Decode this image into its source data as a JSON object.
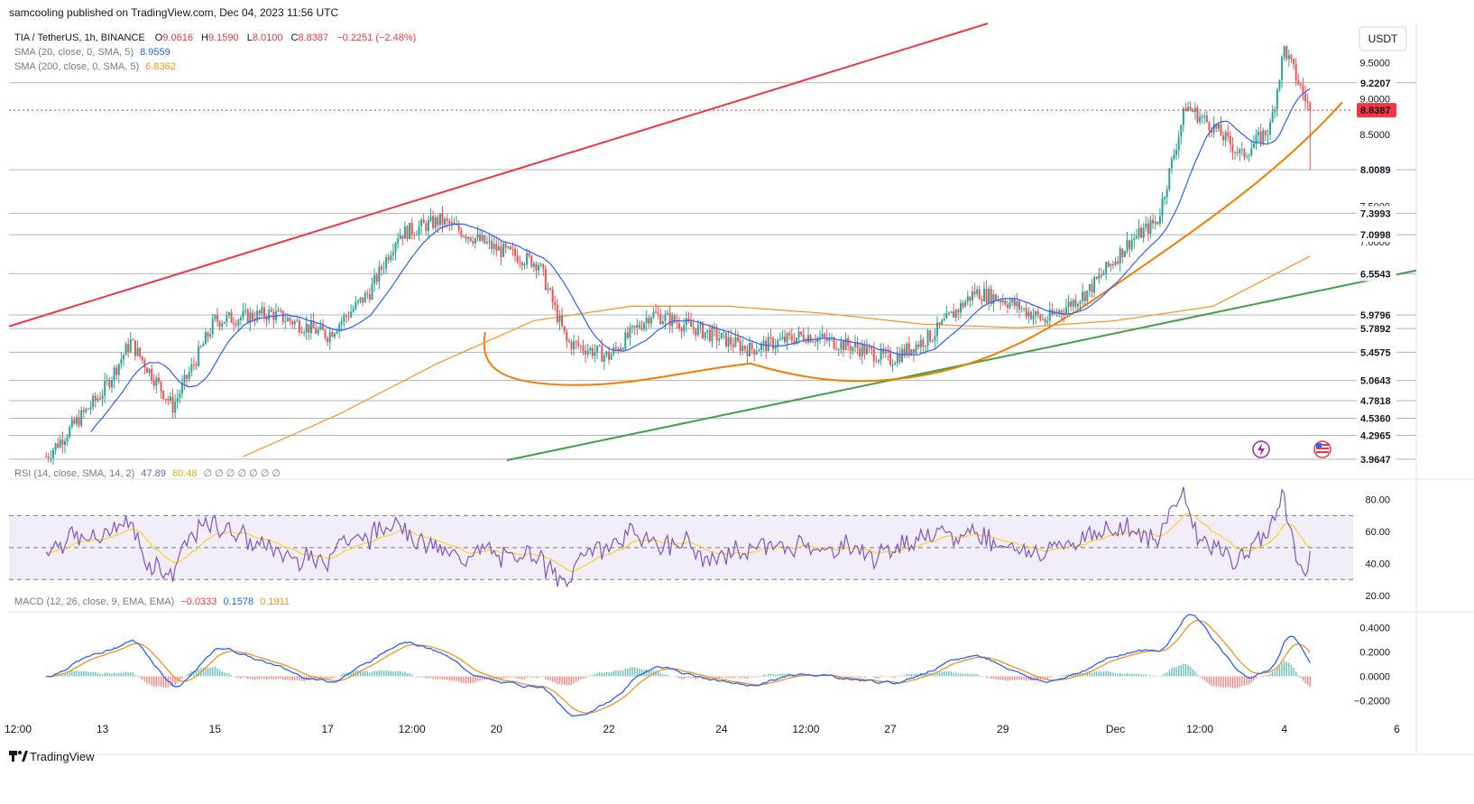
{
  "header": {
    "published": "samcooling published on TradingView.com, Dec 04, 2023 11:56 UTC"
  },
  "symbol": {
    "title": "TIA / TetherUS, 1h, BINANCE",
    "o_label": "O",
    "o": "9.0616",
    "h_label": "H",
    "h": "9.1590",
    "l_label": "L",
    "l": "8.0100",
    "c_label": "C",
    "c": "8.8387",
    "change": "−0.2251 (−2.48%)"
  },
  "indicators": {
    "sma20_label": "SMA (20, close, 0, SMA, 5)",
    "sma20_value": "8.9559",
    "sma200_label": "SMA (200, close, 0, SMA, 5)",
    "sma200_value": "6.8362",
    "rsi_label": "RSI (14, close, SMA, 14, 2)",
    "rsi_value": "47.89",
    "rsi_ma_value": "60.48",
    "rsi_empty": "∅ ∅ ∅ ∅ ∅ ∅ ∅",
    "macd_label": "MACD (12, 26, close, 9, EMA, EMA)",
    "macd_hist": "−0.0333",
    "macd_line": "0.1578",
    "macd_signal": "0.1911"
  },
  "currency_button": "USDT",
  "branding": "TradingView",
  "colors": {
    "up": "#26a69a",
    "down": "#ef5350",
    "sma20": "#2962ff",
    "sma200": "#f7931a",
    "red_trend": "#f23645",
    "green_trend": "#43a047",
    "orange_draw": "#f57c00",
    "rsi": "#7e57c2",
    "rsi_ma": "#f9d423",
    "price_tag": "#f23645"
  },
  "chart_data": {
    "type": "candlestick",
    "symbol": "TIA / TetherUS",
    "interval": "1h",
    "exchange": "BINANCE",
    "ylim": [
      3.95,
      10.05
    ],
    "x_ticks": [
      "12:00",
      "13",
      "15",
      "17",
      "12:00",
      "20",
      "22",
      "24",
      "12:00",
      "27",
      "29",
      "Dec",
      "12:00",
      "4",
      "6"
    ],
    "price_axis_ticks": [
      "9.5000",
      "9.0000",
      "8.5000",
      "8.0000",
      "7.5000",
      "7.0000",
      "6.5000"
    ],
    "horizontal_levels": [
      9.2207,
      8.0089,
      7.3993,
      7.0998,
      6.5543,
      5.9796,
      5.7892,
      5.4575,
      5.0643,
      4.7818,
      4.536,
      4.2965,
      3.9647
    ],
    "horizontal_level_labels": [
      "9.2207",
      "8.0089",
      "7.3993",
      "7.0998",
      "6.5543",
      "5.9796",
      "5.7892",
      "5.4575",
      "5.0643",
      "4.7818",
      "4.5360",
      "4.2965",
      "3.9647"
    ],
    "last_price": 8.8387,
    "last_price_label": "8.8387",
    "price_path_approx": [
      {
        "time": "Nov 12 00:00",
        "close": 4.0
      },
      {
        "time": "Nov 13 00:00",
        "close": 4.9
      },
      {
        "time": "Nov 13 12:00",
        "close": 5.6
      },
      {
        "time": "Nov 14 06:00",
        "close": 4.7
      },
      {
        "time": "Nov 15 00:00",
        "close": 5.9
      },
      {
        "time": "Nov 16 00:00",
        "close": 6.0
      },
      {
        "time": "Nov 17 00:00",
        "close": 5.7
      },
      {
        "time": "Nov 17 18:00",
        "close": 6.3
      },
      {
        "time": "Nov 18 06:00",
        "close": 7.1
      },
      {
        "time": "Nov 19 00:00",
        "close": 7.3
      },
      {
        "time": "Nov 20 00:00",
        "close": 6.9
      },
      {
        "time": "Nov 20 18:00",
        "close": 6.7
      },
      {
        "time": "Nov 21 06:00",
        "close": 5.6
      },
      {
        "time": "Nov 22 00:00",
        "close": 5.4
      },
      {
        "time": "Nov 22 18:00",
        "close": 6.0
      },
      {
        "time": "Nov 23 12:00",
        "close": 5.8
      },
      {
        "time": "Nov 24 12:00",
        "close": 5.5
      },
      {
        "time": "Nov 25 12:00",
        "close": 5.7
      },
      {
        "time": "Nov 26 12:00",
        "close": 5.5
      },
      {
        "time": "Nov 27 00:00",
        "close": 5.35
      },
      {
        "time": "Nov 27 18:00",
        "close": 5.7
      },
      {
        "time": "Nov 28 12:00",
        "close": 6.3
      },
      {
        "time": "Nov 29 00:00",
        "close": 6.2
      },
      {
        "time": "Nov 29 18:00",
        "close": 5.9
      },
      {
        "time": "Nov 30 12:00",
        "close": 6.3
      },
      {
        "time": "Dec 01 06:00",
        "close": 7.0
      },
      {
        "time": "Dec 01 18:00",
        "close": 7.3
      },
      {
        "time": "Dec 02 06:00",
        "close": 8.9
      },
      {
        "time": "Dec 02 18:00",
        "close": 8.6
      },
      {
        "time": "Dec 03 06:00",
        "close": 8.2
      },
      {
        "time": "Dec 03 18:00",
        "close": 8.6
      },
      {
        "time": "Dec 04 00:00",
        "close": 9.7
      },
      {
        "time": "Dec 04 11:00",
        "close": 8.84
      }
    ],
    "sma20_path_approx": [
      4.3,
      4.6,
      5.2,
      5.6,
      6.0,
      6.4,
      6.9,
      7.0,
      6.7,
      5.8,
      5.6,
      5.7,
      5.6,
      5.6,
      5.4,
      5.7,
      6.1,
      6.0,
      6.3,
      6.7,
      7.0,
      8.2,
      8.7,
      8.4,
      8.95
    ],
    "sma200_path_approx": [
      4.0,
      4.6,
      5.3,
      5.9,
      6.1,
      6.1,
      6.0,
      5.85,
      5.8,
      5.9,
      6.1,
      6.8
    ],
    "rsi": {
      "ylim": [
        20,
        90
      ],
      "levels": [
        70,
        50,
        30
      ],
      "ticks": [
        "80.00",
        "60.00",
        "40.00",
        "20.00"
      ],
      "last": 47.89,
      "ma_last": 60.48
    },
    "macd": {
      "ylim": [
        -0.3,
        0.5
      ],
      "ticks": [
        "0.4000",
        "0.2000",
        "0.0000",
        "−0.2000"
      ],
      "hist_last": -0.0333,
      "macd_last": 0.1578,
      "signal_last": 0.1911
    },
    "drawings": [
      "ascending red trendline (resistance)",
      "ascending green trendline (support)",
      "orange rounded-bottom curve"
    ]
  }
}
